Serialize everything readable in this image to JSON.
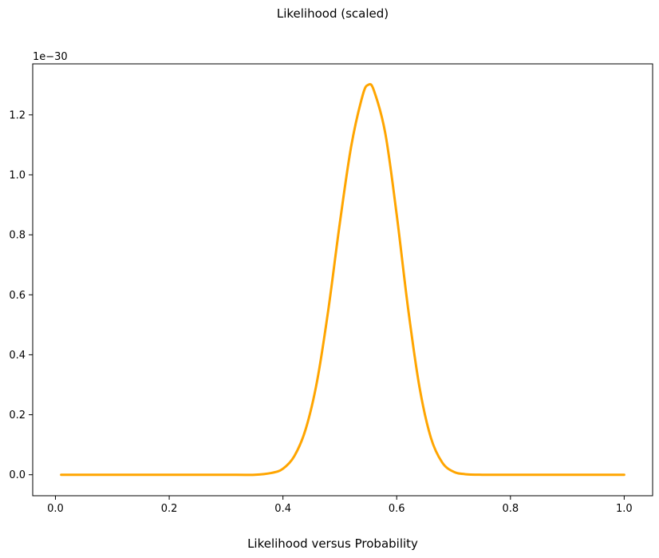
{
  "chart_data": {
    "type": "line",
    "title": "Likelihood (scaled)",
    "caption": "Likelihood versus Probability",
    "xlabel": "",
    "ylabel": "",
    "y_offset_text": "1e−30",
    "xlim": [
      -0.04,
      1.05
    ],
    "ylim": [
      -0.07,
      1.37
    ],
    "x_ticks": [
      0.0,
      0.2,
      0.4,
      0.6,
      0.8,
      1.0
    ],
    "x_tick_labels": [
      "0.0",
      "0.2",
      "0.4",
      "0.6",
      "0.8",
      "1.0"
    ],
    "y_ticks": [
      0.0,
      0.2,
      0.4,
      0.6,
      0.8,
      1.0,
      1.2
    ],
    "y_tick_labels": [
      "0.0",
      "0.2",
      "0.4",
      "0.6",
      "0.8",
      "1.0",
      "1.2"
    ],
    "grid": false,
    "legend": "none",
    "series": [
      {
        "color": "#ffa500",
        "x": [
          0.01,
          0.05,
          0.1,
          0.15,
          0.2,
          0.25,
          0.3,
          0.35,
          0.38,
          0.4,
          0.42,
          0.44,
          0.46,
          0.48,
          0.5,
          0.52,
          0.54,
          0.55,
          0.56,
          0.58,
          0.6,
          0.62,
          0.64,
          0.66,
          0.68,
          0.7,
          0.72,
          0.75,
          0.8,
          0.85,
          0.9,
          0.95,
          1.0
        ],
        "y": [
          0.0,
          0.0,
          0.0,
          0.0,
          0.0,
          0.0,
          0.0,
          0.0,
          0.006,
          0.02,
          0.062,
          0.152,
          0.312,
          0.553,
          0.839,
          1.095,
          1.264,
          1.3,
          1.281,
          1.138,
          0.867,
          0.555,
          0.293,
          0.124,
          0.041,
          0.01,
          0.002,
          0.0,
          0.0,
          0.0,
          0.0,
          0.0,
          0.0
        ]
      }
    ]
  }
}
